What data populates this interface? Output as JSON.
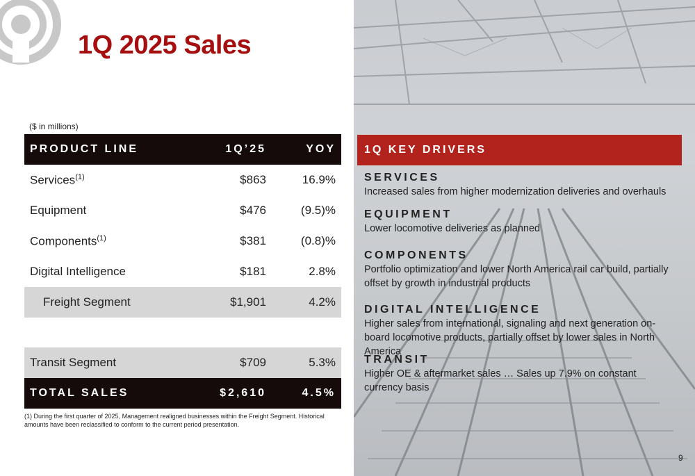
{
  "page": {
    "title": "1Q 2025 Sales",
    "page_number": "9"
  },
  "table": {
    "units": "($ in millions)",
    "headers": {
      "product": "PRODUCT LINE",
      "period": "1Q’25",
      "yoy": "YOY"
    },
    "rows": [
      {
        "label": "Services",
        "sup": "(1)",
        "value": "$863",
        "yoy": "16.9%"
      },
      {
        "label": "Equipment",
        "sup": "",
        "value": "$476",
        "yoy": "(9.5)%"
      },
      {
        "label": "Components",
        "sup": "(1)",
        "value": "$381",
        "yoy": "(0.8)%"
      },
      {
        "label": "Digital Intelligence",
        "sup": "",
        "value": "$181",
        "yoy": "2.8%"
      },
      {
        "label": "Freight Segment",
        "sup": "",
        "value": "$1,901",
        "yoy": "4.2%"
      },
      {
        "label": "Transit Segment",
        "sup": "",
        "value": "$709",
        "yoy": "5.3%"
      }
    ],
    "total": {
      "label": "TOTAL SALES",
      "value": "$2,610",
      "yoy": "4.5%"
    },
    "footnote": "(1) During the first quarter of 2025, Management realigned businesses  within the Freight Segment.  Historical amounts have been reclassified to conform to the current period presentation."
  },
  "drivers": {
    "header": "1Q KEY DRIVERS",
    "items": [
      {
        "title": "SERVICES",
        "text": "Increased sales from higher modernization deliveries and overhauls"
      },
      {
        "title": "EQUIPMENT",
        "text": "Lower locomotive deliveries as planned"
      },
      {
        "title": "COMPONENTS",
        "text": "Portfolio optimization and lower North America rail car build, partially offset by growth in industrial products"
      },
      {
        "title": "DIGITAL INTELLIGENCE",
        "text": "Higher sales from international, signaling and next generation on-board locomotive products, partially offset by lower sales in North America"
      },
      {
        "title": "TRANSIT",
        "text": "Higher OE & aftermarket sales … Sales up 7.9% on constant currency basis"
      }
    ]
  },
  "colors": {
    "accent_red": "#a50f0f",
    "header_dark": "#150b0b",
    "drivers_red": "#b3231d",
    "row_shade": "#d6d6d6"
  }
}
